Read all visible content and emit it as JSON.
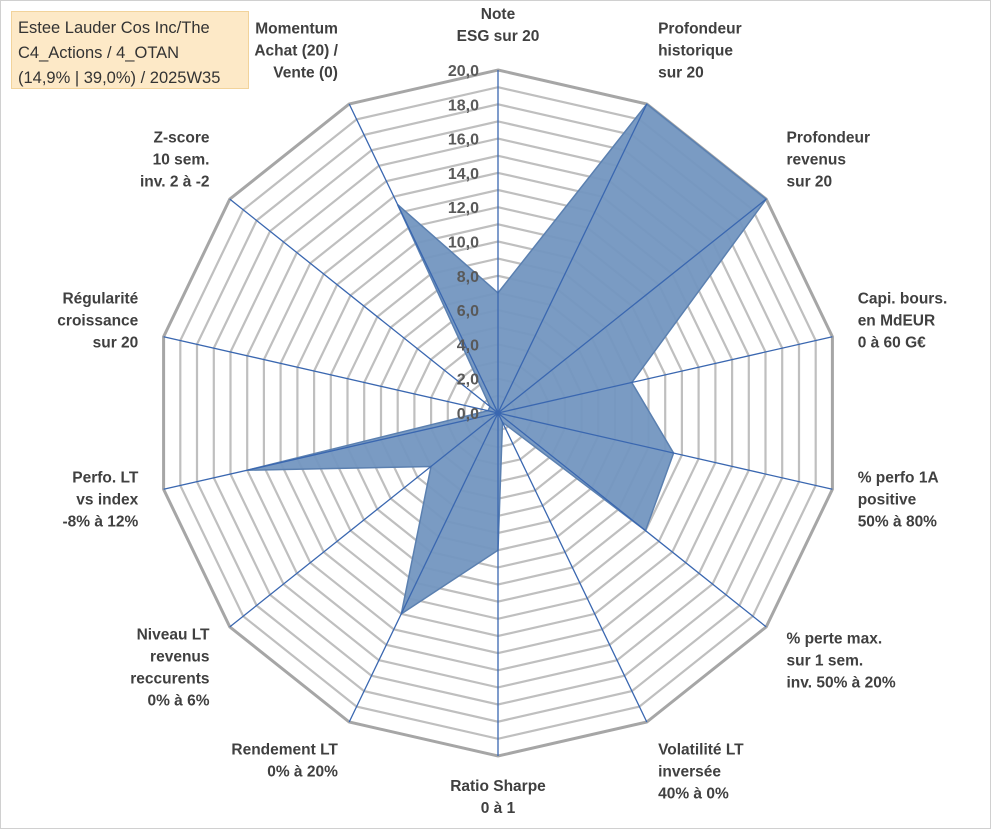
{
  "title_box": {
    "lines": [
      "Estee Lauder Cos Inc/The",
      "C4_Actions / 4_OTAN",
      "(14,9% | 39,0%) / 2025W35"
    ]
  },
  "chart_data": {
    "type": "radar",
    "rmin": 0,
    "rmax": 20,
    "tick_step": 2,
    "grid_step": 1,
    "ticks": [
      "0,0",
      "2,0",
      "4,0",
      "6,0",
      "8,0",
      "10,0",
      "12,0",
      "14,0",
      "16,0",
      "18,0",
      "20,0"
    ],
    "axes": [
      {
        "lines": [
          "Note",
          "ESG sur 20"
        ]
      },
      {
        "lines": [
          "Profondeur",
          "historique",
          "sur 20"
        ]
      },
      {
        "lines": [
          "Profondeur",
          "revenus",
          "sur 20"
        ]
      },
      {
        "lines": [
          "Capi. bours.",
          "en MdEUR",
          "0 à 60 G€"
        ]
      },
      {
        "lines": [
          "% perfo 1A",
          "positive",
          "50% à 80%"
        ]
      },
      {
        "lines": [
          "% perte max.",
          "sur 1 sem.",
          "inv. 50% à 20%"
        ]
      },
      {
        "lines": [
          "Volatilité LT",
          "inversée",
          "40% à 0%"
        ]
      },
      {
        "lines": [
          "Ratio Sharpe",
          "0 à 1"
        ]
      },
      {
        "lines": [
          "Rendement LT",
          "0% à 20%"
        ]
      },
      {
        "lines": [
          "Niveau LT",
          "revenus",
          "reccurents",
          "0% à 6%"
        ]
      },
      {
        "lines": [
          "Perfo. LT",
          "vs index",
          "-8% à 12%"
        ]
      },
      {
        "lines": [
          "Régularité",
          "croissance",
          "sur 20"
        ]
      },
      {
        "lines": [
          "Z-score",
          "10 sem.",
          "inv. 2 à -2"
        ]
      },
      {
        "lines": [
          "Momentum",
          "Achat (20) /",
          "Vente (0)"
        ]
      }
    ],
    "series": [
      {
        "values": [
          7.0,
          20.0,
          20.0,
          8.0,
          10.5,
          11.0,
          0.6,
          8.0,
          13.0,
          5.0,
          15.0,
          0.6,
          0.6,
          13.5
        ]
      }
    ],
    "colors": {
      "fill": "#7396c0",
      "stroke": "#5b80b0",
      "spoke": "#3a67b0",
      "grid": "#bfbfbf",
      "outer": "#a6a6a6"
    },
    "grid": true,
    "legend": "none"
  }
}
